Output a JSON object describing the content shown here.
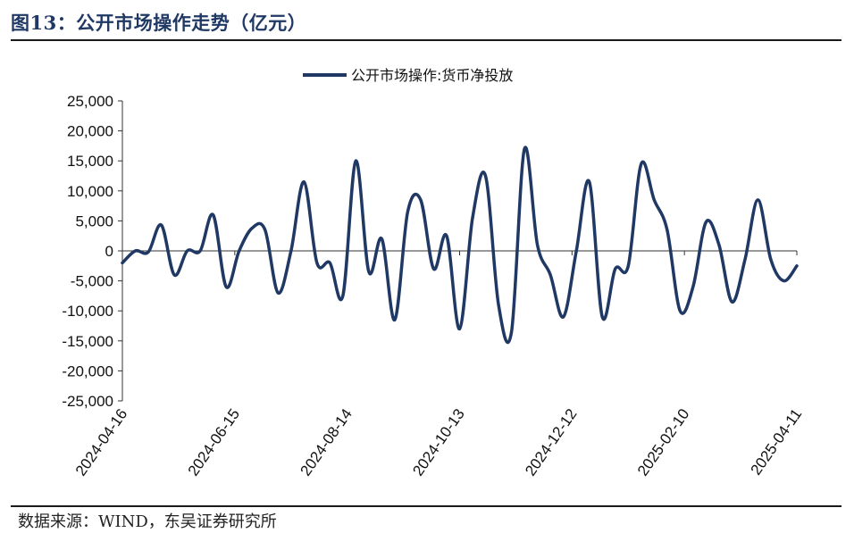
{
  "header": {
    "title": "图13：公开市场操作走势（亿元）"
  },
  "footer": {
    "source": "数据来源：WIND，东吴证券研究所"
  },
  "chart_data": {
    "type": "line",
    "title": "",
    "xlabel": "",
    "ylabel": "",
    "ylim": [
      -25000,
      25000
    ],
    "y_ticks": [
      25000,
      20000,
      15000,
      10000,
      5000,
      0,
      -5000,
      -10000,
      -15000,
      -20000,
      -25000
    ],
    "y_tick_labels": [
      "25,000",
      "20,000",
      "15,000",
      "10,000",
      "5,000",
      "0",
      "-5,000",
      "-10,000",
      "-15,000",
      "-20,000",
      "-25,000"
    ],
    "x_tick_labels": [
      "2024-04-16",
      "2024-06-15",
      "2024-08-14",
      "2024-10-13",
      "2024-12-12",
      "2025-02-10",
      "2025-04-11"
    ],
    "grid": false,
    "legend": "top-center",
    "colors": {
      "series": "#1f3864"
    },
    "series": [
      {
        "name": "公开市场操作:货币净投放",
        "values": [
          -2000,
          0,
          -200,
          4300,
          -4000,
          0,
          0,
          6000,
          -6000,
          0,
          3800,
          3500,
          -7000,
          0,
          11500,
          -2000,
          -2000,
          -7500,
          15000,
          -3500,
          2000,
          -11500,
          6500,
          8500,
          -3000,
          2500,
          -13000,
          5500,
          12500,
          -9000,
          -13500,
          17000,
          1000,
          -4000,
          -11000,
          0,
          11500,
          -11000,
          -3000,
          -2500,
          14500,
          8500,
          3500,
          -10000,
          -6000,
          4800,
          1000,
          -8500,
          -1500,
          8500,
          -1500,
          -5000,
          -2500
        ]
      }
    ]
  }
}
